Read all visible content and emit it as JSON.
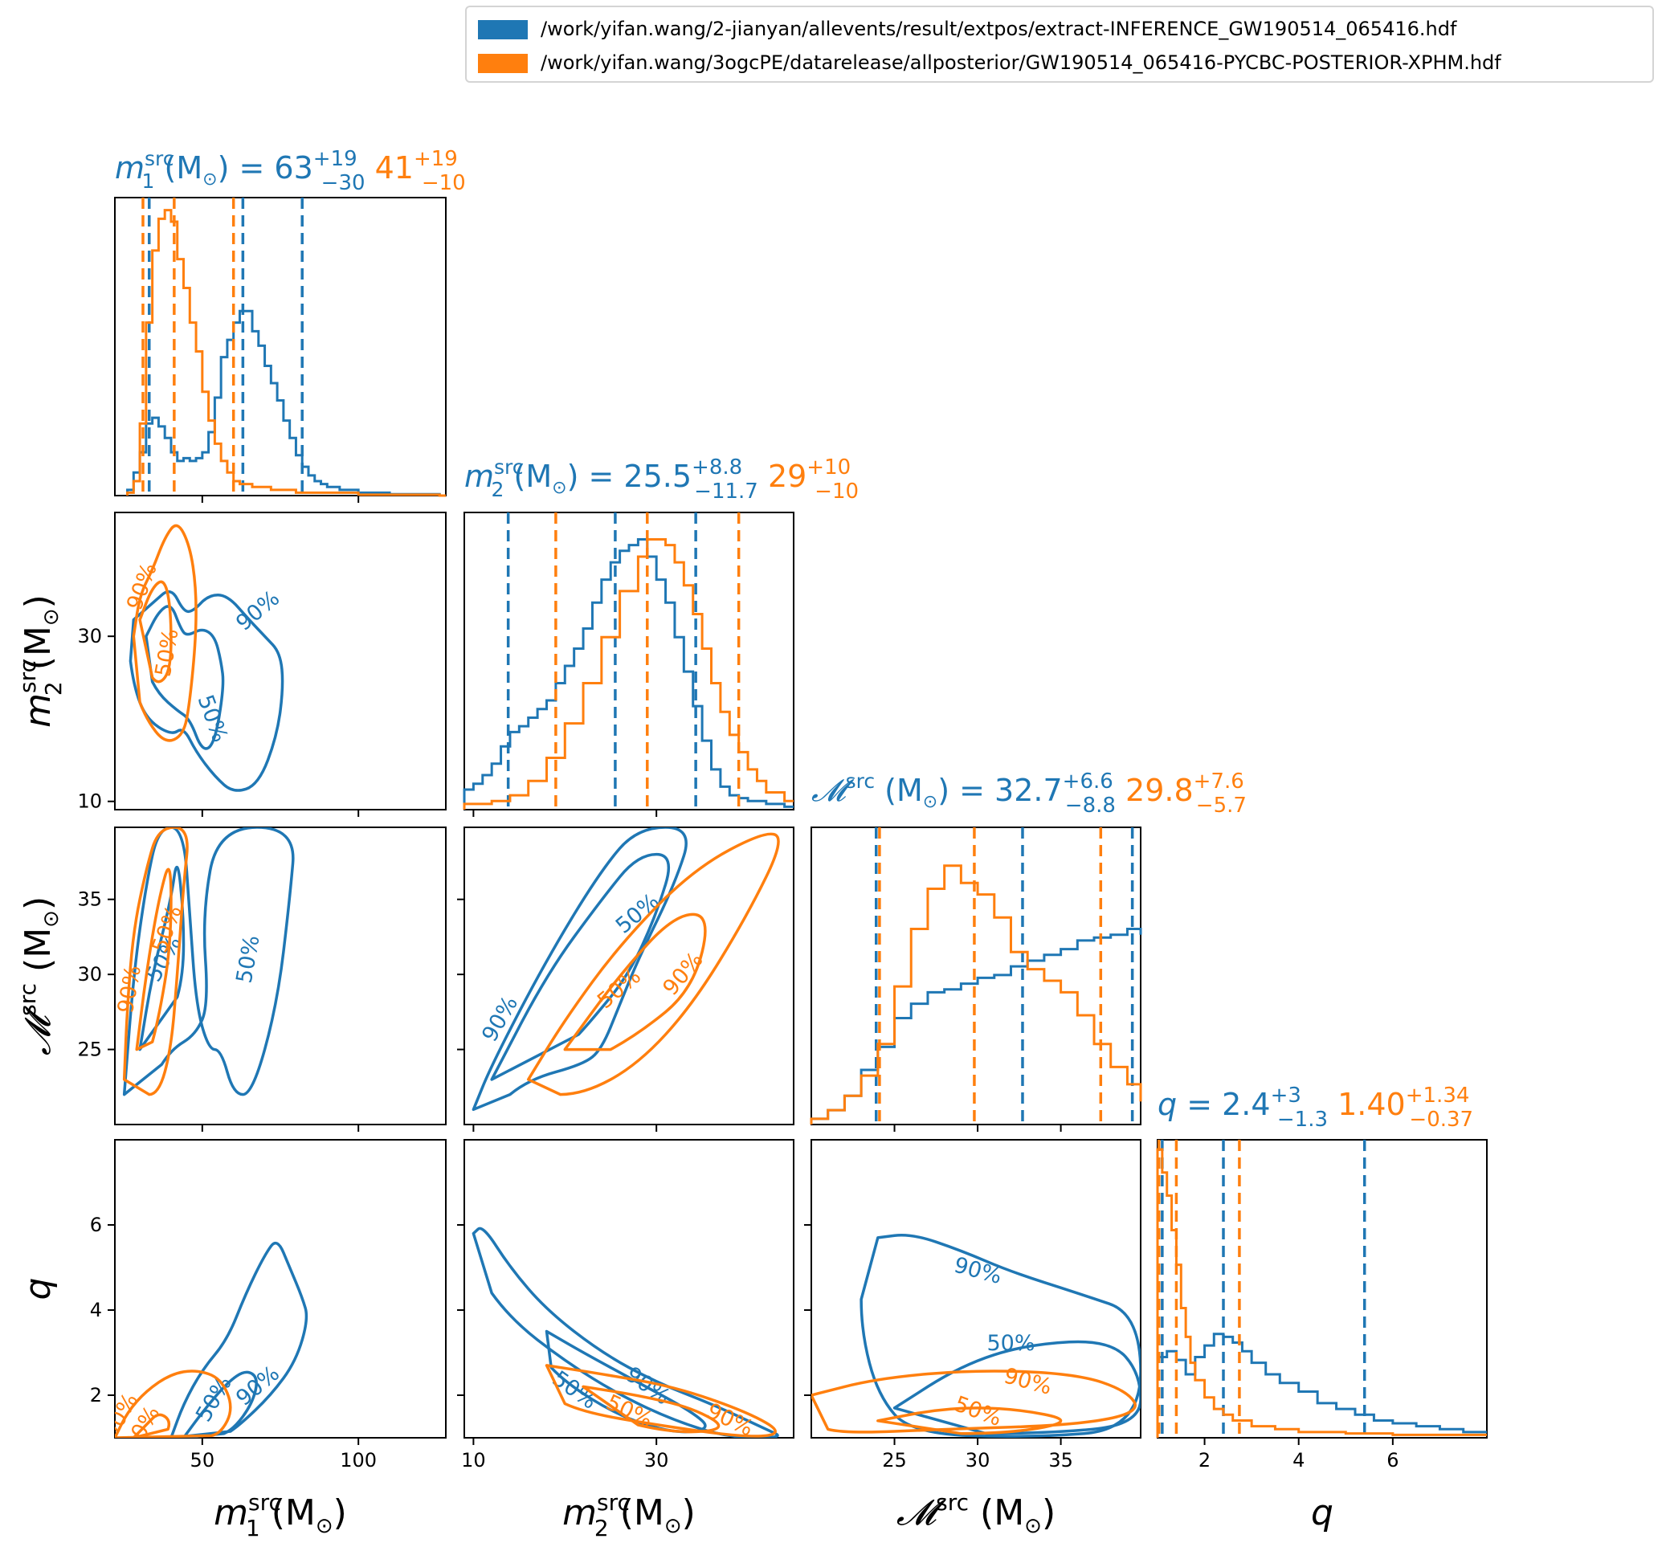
{
  "legend": {
    "entries": [
      {
        "label": "/work/yifan.wang/2-jianyan/allevents/result/extpos/extract-INFERENCE_GW190514_065416.hdf",
        "color": "#1f77b4"
      },
      {
        "label": "/work/yifan.wang/3ogcPE/datarelease/allposterior/GW190514_065416-PYCBC-POSTERIOR-XPHM.hdf",
        "color": "#ff7f0e"
      }
    ]
  },
  "colors": {
    "blue": "#1f77b4",
    "orange": "#ff7f0e"
  },
  "titles": {
    "m1": {
      "blue": {
        "value": "63",
        "plus": "+19",
        "minus": "−30"
      },
      "orange": {
        "value": "41",
        "plus": "+19",
        "minus": "−10"
      }
    },
    "m2": {
      "blue": {
        "value": "25.5",
        "plus": "+8.8",
        "minus": "−11.7"
      },
      "orange": {
        "value": "29",
        "plus": "+10",
        "minus": "−10"
      }
    },
    "mc": {
      "blue": {
        "value": "32.7",
        "plus": "+6.6",
        "minus": "−8.8"
      },
      "orange": {
        "value": "29.8",
        "plus": "+7.6",
        "minus": "−5.7"
      }
    },
    "q": {
      "blue": {
        "value": "2.4",
        "plus": "+3",
        "minus": "−1.3"
      },
      "orange": {
        "value": "1.40",
        "plus": "+1.34",
        "minus": "−0.37"
      }
    }
  },
  "axis_labels": {
    "m1": {
      "sym": "m",
      "sub": "1",
      "sup": "src",
      "unit": "(M",
      "unit_sub": "⊙",
      "unit_close": ")"
    },
    "m2": {
      "sym": "m",
      "sub": "2",
      "sup": "src",
      "unit": "(M",
      "unit_sub": "⊙",
      "unit_close": ")"
    },
    "mc": {
      "sym": "𝓜",
      "sub": "",
      "sup": "src",
      "unit": "(M",
      "unit_sub": "⊙",
      "unit_close": ")"
    },
    "q": {
      "sym": "q",
      "sub": "",
      "sup": "",
      "unit": "",
      "unit_sub": "",
      "unit_close": ""
    }
  },
  "contour_labels": {
    "p50": "50%",
    "p90": "90%"
  },
  "chart_data": {
    "type": "corner",
    "parameters": [
      "m1_src",
      "m2_src",
      "mchirp_src",
      "q"
    ],
    "ranges": {
      "m1": [
        22,
        128
      ],
      "m2": [
        9,
        45
      ],
      "mc": [
        20,
        39.8
      ],
      "q": [
        1,
        8
      ]
    },
    "ticks": {
      "m1": [
        50,
        100
      ],
      "m2": [
        10,
        30
      ],
      "mc": [
        25,
        30,
        35
      ],
      "q": [
        2,
        4,
        6
      ]
    },
    "series": [
      {
        "name": "/work/yifan.wang/2-jianyan/allevents/result/extpos/extract-INFERENCE_GW190514_065416.hdf",
        "color": "#1f77b4",
        "quantile_lines": {
          "m1": [
            33,
            63,
            82
          ],
          "m2": [
            13.8,
            25.5,
            34.3
          ],
          "mc": [
            23.9,
            32.7,
            39.3
          ],
          "q": [
            1.1,
            2.4,
            5.4
          ]
        },
        "hist": {
          "m1": [
            [
              26,
              0.02
            ],
            [
              28,
              0.08
            ],
            [
              30,
              0.15
            ],
            [
              32,
              0.25
            ],
            [
              34,
              0.27
            ],
            [
              36,
              0.24
            ],
            [
              38,
              0.2
            ],
            [
              40,
              0.15
            ],
            [
              42,
              0.12
            ],
            [
              44,
              0.13
            ],
            [
              46,
              0.12
            ],
            [
              48,
              0.13
            ],
            [
              50,
              0.15
            ],
            [
              52,
              0.22
            ],
            [
              54,
              0.34
            ],
            [
              56,
              0.48
            ],
            [
              58,
              0.54
            ],
            [
              60,
              0.6
            ],
            [
              62,
              0.64
            ],
            [
              64,
              0.64
            ],
            [
              66,
              0.57
            ],
            [
              68,
              0.52
            ],
            [
              70,
              0.45
            ],
            [
              72,
              0.39
            ],
            [
              74,
              0.33
            ],
            [
              76,
              0.26
            ],
            [
              78,
              0.2
            ],
            [
              80,
              0.14
            ],
            [
              82,
              0.1
            ],
            [
              84,
              0.07
            ],
            [
              86,
              0.05
            ],
            [
              88,
              0.04
            ],
            [
              90,
              0.03
            ],
            [
              92,
              0.03
            ],
            [
              94,
              0.02
            ],
            [
              96,
              0.02
            ],
            [
              100,
              0.01
            ],
            [
              110,
              0.005
            ],
            [
              126,
              0
            ]
          ],
          "m2": [
            [
              9,
              0.07
            ],
            [
              10,
              0.09
            ],
            [
              11,
              0.12
            ],
            [
              12,
              0.16
            ],
            [
              13,
              0.22
            ],
            [
              14,
              0.27
            ],
            [
              15,
              0.29
            ],
            [
              16,
              0.32
            ],
            [
              17,
              0.35
            ],
            [
              18,
              0.38
            ],
            [
              19,
              0.44
            ],
            [
              20,
              0.5
            ],
            [
              21,
              0.56
            ],
            [
              22,
              0.63
            ],
            [
              23,
              0.72
            ],
            [
              24,
              0.8
            ],
            [
              25,
              0.86
            ],
            [
              26,
              0.9
            ],
            [
              27,
              0.92
            ],
            [
              28,
              0.94
            ],
            [
              29,
              0.88
            ],
            [
              30,
              0.8
            ],
            [
              31,
              0.72
            ],
            [
              32,
              0.6
            ],
            [
              33,
              0.48
            ],
            [
              34,
              0.36
            ],
            [
              35,
              0.24
            ],
            [
              36,
              0.14
            ],
            [
              37,
              0.08
            ],
            [
              38,
              0.05
            ],
            [
              39,
              0.04
            ],
            [
              40,
              0.03
            ],
            [
              42,
              0.02
            ],
            [
              44,
              0.01
            ]
          ],
          "mc": [
            [
              20,
              0.02
            ],
            [
              21,
              0.05
            ],
            [
              22,
              0.1
            ],
            [
              23,
              0.19
            ],
            [
              24,
              0.27
            ],
            [
              25,
              0.37
            ],
            [
              26,
              0.42
            ],
            [
              27,
              0.46
            ],
            [
              28,
              0.47
            ],
            [
              29,
              0.49
            ],
            [
              30,
              0.51
            ],
            [
              31,
              0.52
            ],
            [
              32,
              0.55
            ],
            [
              33,
              0.57
            ],
            [
              34,
              0.59
            ],
            [
              35,
              0.61
            ],
            [
              36,
              0.64
            ],
            [
              37,
              0.65
            ],
            [
              38,
              0.66
            ],
            [
              39,
              0.68
            ],
            [
              39.8,
              0.66
            ]
          ],
          "q": [
            [
              1,
              0.28
            ],
            [
              1.2,
              0.3
            ],
            [
              1.4,
              0.27
            ],
            [
              1.6,
              0.22
            ],
            [
              1.8,
              0.28
            ],
            [
              2,
              0.32
            ],
            [
              2.2,
              0.36
            ],
            [
              2.4,
              0.35
            ],
            [
              2.6,
              0.33
            ],
            [
              2.8,
              0.3
            ],
            [
              3,
              0.26
            ],
            [
              3.3,
              0.22
            ],
            [
              3.6,
              0.19
            ],
            [
              4,
              0.16
            ],
            [
              4.4,
              0.12
            ],
            [
              4.8,
              0.1
            ],
            [
              5.2,
              0.08
            ],
            [
              5.6,
              0.06
            ],
            [
              6,
              0.05
            ],
            [
              6.5,
              0.04
            ],
            [
              7,
              0.03
            ],
            [
              7.5,
              0.02
            ],
            [
              8,
              0.02
            ]
          ]
        }
      },
      {
        "name": "/work/yifan.wang/3ogcPE/datarelease/allposterior/GW190514_065416-PYCBC-POSTERIOR-XPHM.hdf",
        "color": "#ff7f0e",
        "quantile_lines": {
          "m1": [
            31,
            41,
            60
          ],
          "m2": [
            19,
            29,
            39
          ],
          "mc": [
            24.1,
            29.8,
            37.4
          ],
          "q": [
            1.03,
            1.4,
            2.74
          ]
        },
        "hist": {
          "m1": [
            [
              26,
              0.01
            ],
            [
              28,
              0.05
            ],
            [
              30,
              0.25
            ],
            [
              32,
              0.6
            ],
            [
              34,
              0.85
            ],
            [
              36,
              0.96
            ],
            [
              38,
              0.99
            ],
            [
              40,
              0.95
            ],
            [
              42,
              0.82
            ],
            [
              44,
              0.72
            ],
            [
              46,
              0.6
            ],
            [
              48,
              0.5
            ],
            [
              50,
              0.36
            ],
            [
              52,
              0.26
            ],
            [
              54,
              0.18
            ],
            [
              56,
              0.12
            ],
            [
              58,
              0.08
            ],
            [
              60,
              0.05
            ],
            [
              62,
              0.04
            ],
            [
              66,
              0.03
            ],
            [
              72,
              0.02
            ],
            [
              80,
              0.01
            ],
            [
              100,
              0.003
            ],
            [
              126,
              0
            ]
          ],
          "m2": [
            [
              9,
              0.02
            ],
            [
              12,
              0.03
            ],
            [
              14,
              0.05
            ],
            [
              16,
              0.1
            ],
            [
              18,
              0.18
            ],
            [
              20,
              0.3
            ],
            [
              22,
              0.44
            ],
            [
              24,
              0.6
            ],
            [
              26,
              0.76
            ],
            [
              28,
              0.88
            ],
            [
              29,
              0.94
            ],
            [
              30,
              0.94
            ],
            [
              31,
              0.92
            ],
            [
              32,
              0.86
            ],
            [
              33,
              0.78
            ],
            [
              34,
              0.68
            ],
            [
              35,
              0.56
            ],
            [
              36,
              0.44
            ],
            [
              37,
              0.34
            ],
            [
              38,
              0.26
            ],
            [
              39,
              0.2
            ],
            [
              40,
              0.14
            ],
            [
              41,
              0.1
            ],
            [
              42,
              0.06
            ],
            [
              44,
              0.03
            ]
          ],
          "mc": [
            [
              20,
              0.02
            ],
            [
              21,
              0.05
            ],
            [
              22,
              0.1
            ],
            [
              23,
              0.17
            ],
            [
              24,
              0.28
            ],
            [
              25,
              0.48
            ],
            [
              26,
              0.68
            ],
            [
              27,
              0.82
            ],
            [
              28,
              0.9
            ],
            [
              29,
              0.84
            ],
            [
              30,
              0.8
            ],
            [
              31,
              0.72
            ],
            [
              32,
              0.6
            ],
            [
              33,
              0.54
            ],
            [
              34,
              0.5
            ],
            [
              35,
              0.46
            ],
            [
              36,
              0.38
            ],
            [
              37,
              0.28
            ],
            [
              38,
              0.2
            ],
            [
              39,
              0.14
            ],
            [
              39.8,
              0.08
            ]
          ],
          "q": [
            [
              1,
              1.0
            ],
            [
              1.1,
              0.92
            ],
            [
              1.2,
              0.84
            ],
            [
              1.3,
              0.72
            ],
            [
              1.4,
              0.6
            ],
            [
              1.5,
              0.45
            ],
            [
              1.6,
              0.35
            ],
            [
              1.7,
              0.26
            ],
            [
              1.8,
              0.2
            ],
            [
              2,
              0.14
            ],
            [
              2.2,
              0.1
            ],
            [
              2.4,
              0.08
            ],
            [
              2.6,
              0.06
            ],
            [
              3,
              0.04
            ],
            [
              3.5,
              0.03
            ],
            [
              4,
              0.02
            ],
            [
              5,
              0.015
            ],
            [
              6,
              0.01
            ],
            [
              8,
              0.01
            ]
          ]
        }
      }
    ]
  }
}
